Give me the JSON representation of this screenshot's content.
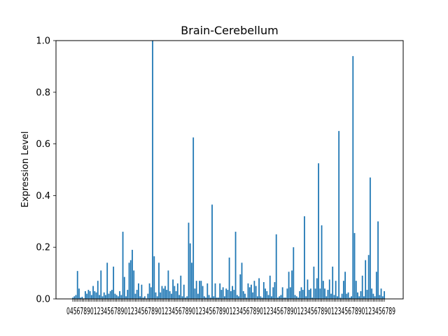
{
  "chart_data": {
    "type": "bar",
    "title": "Brain-Cerebellum",
    "xlabel": "",
    "ylabel": "Expression Level",
    "ylim": [
      0,
      1.0
    ],
    "yticks": [
      "0.0",
      "0.2",
      "0.4",
      "0.6",
      "0.8",
      "1.0"
    ],
    "xtick_text": "0456789012345678901234567890123456789012345678901234567890123456789012345678901234567890123456789",
    "grid": false,
    "bar_color": "#1f77b4",
    "values": [
      0.005,
      0.01,
      0.015,
      0.108,
      0.04,
      0.005,
      0.008,
      0.002,
      0.03,
      0.02,
      0.035,
      0.03,
      0.015,
      0.05,
      0.03,
      0.025,
      0.07,
      0.015,
      0.11,
      0.01,
      0.025,
      0.015,
      0.14,
      0.02,
      0.03,
      0.035,
      0.125,
      0.02,
      0.015,
      0.01,
      0.03,
      0.015,
      0.26,
      0.085,
      0.01,
      0.035,
      0.14,
      0.15,
      0.19,
      0.11,
      0.02,
      0.035,
      0.06,
      0.01,
      0.055,
      0.005,
      0.01,
      0.002,
      0.02,
      0.06,
      0.045,
      1.0,
      0.165,
      0.025,
      0.01,
      0.14,
      0.025,
      0.05,
      0.04,
      0.05,
      0.035,
      0.11,
      0.03,
      0.02,
      0.075,
      0.05,
      0.03,
      0.06,
      0.015,
      0.09,
      0.01,
      0.055,
      0.005,
      0.01,
      0.295,
      0.215,
      0.14,
      0.625,
      0.04,
      0.07,
      0.02,
      0.07,
      0.07,
      0.05,
      0.01,
      0.005,
      0.06,
      0.015,
      0.005,
      0.365,
      0.01,
      0.06,
      0.005,
      0.005,
      0.06,
      0.035,
      0.045,
      0.01,
      0.04,
      0.035,
      0.16,
      0.03,
      0.05,
      0.035,
      0.26,
      0.015,
      0.01,
      0.095,
      0.14,
      0.03,
      0.02,
      0.005,
      0.06,
      0.045,
      0.055,
      0.025,
      0.07,
      0.05,
      0.01,
      0.08,
      0.01,
      0.005,
      0.065,
      0.04,
      0.03,
      0.015,
      0.09,
      0.01,
      0.045,
      0.065,
      0.25,
      0.005,
      0.01,
      0.015,
      0.045,
      0.005,
      0.005,
      0.04,
      0.105,
      0.045,
      0.11,
      0.2,
      0.015,
      0.01,
      0.005,
      0.03,
      0.045,
      0.035,
      0.32,
      0.01,
      0.075,
      0.035,
      0.04,
      0.005,
      0.125,
      0.04,
      0.08,
      0.525,
      0.04,
      0.285,
      0.07,
      0.04,
      0.01,
      0.035,
      0.075,
      0.02,
      0.125,
      0.015,
      0.07,
      0.01,
      0.65,
      0.005,
      0.02,
      0.07,
      0.105,
      0.02,
      0.025,
      0.005,
      0.01,
      0.94,
      0.255,
      0.07,
      0.025,
      0.01,
      0.03,
      0.09,
      0.01,
      0.15,
      0.035,
      0.17,
      0.47,
      0.04,
      0.02,
      0.01,
      0.105,
      0.3,
      0.015,
      0.04,
      0.01,
      0.03
    ]
  }
}
